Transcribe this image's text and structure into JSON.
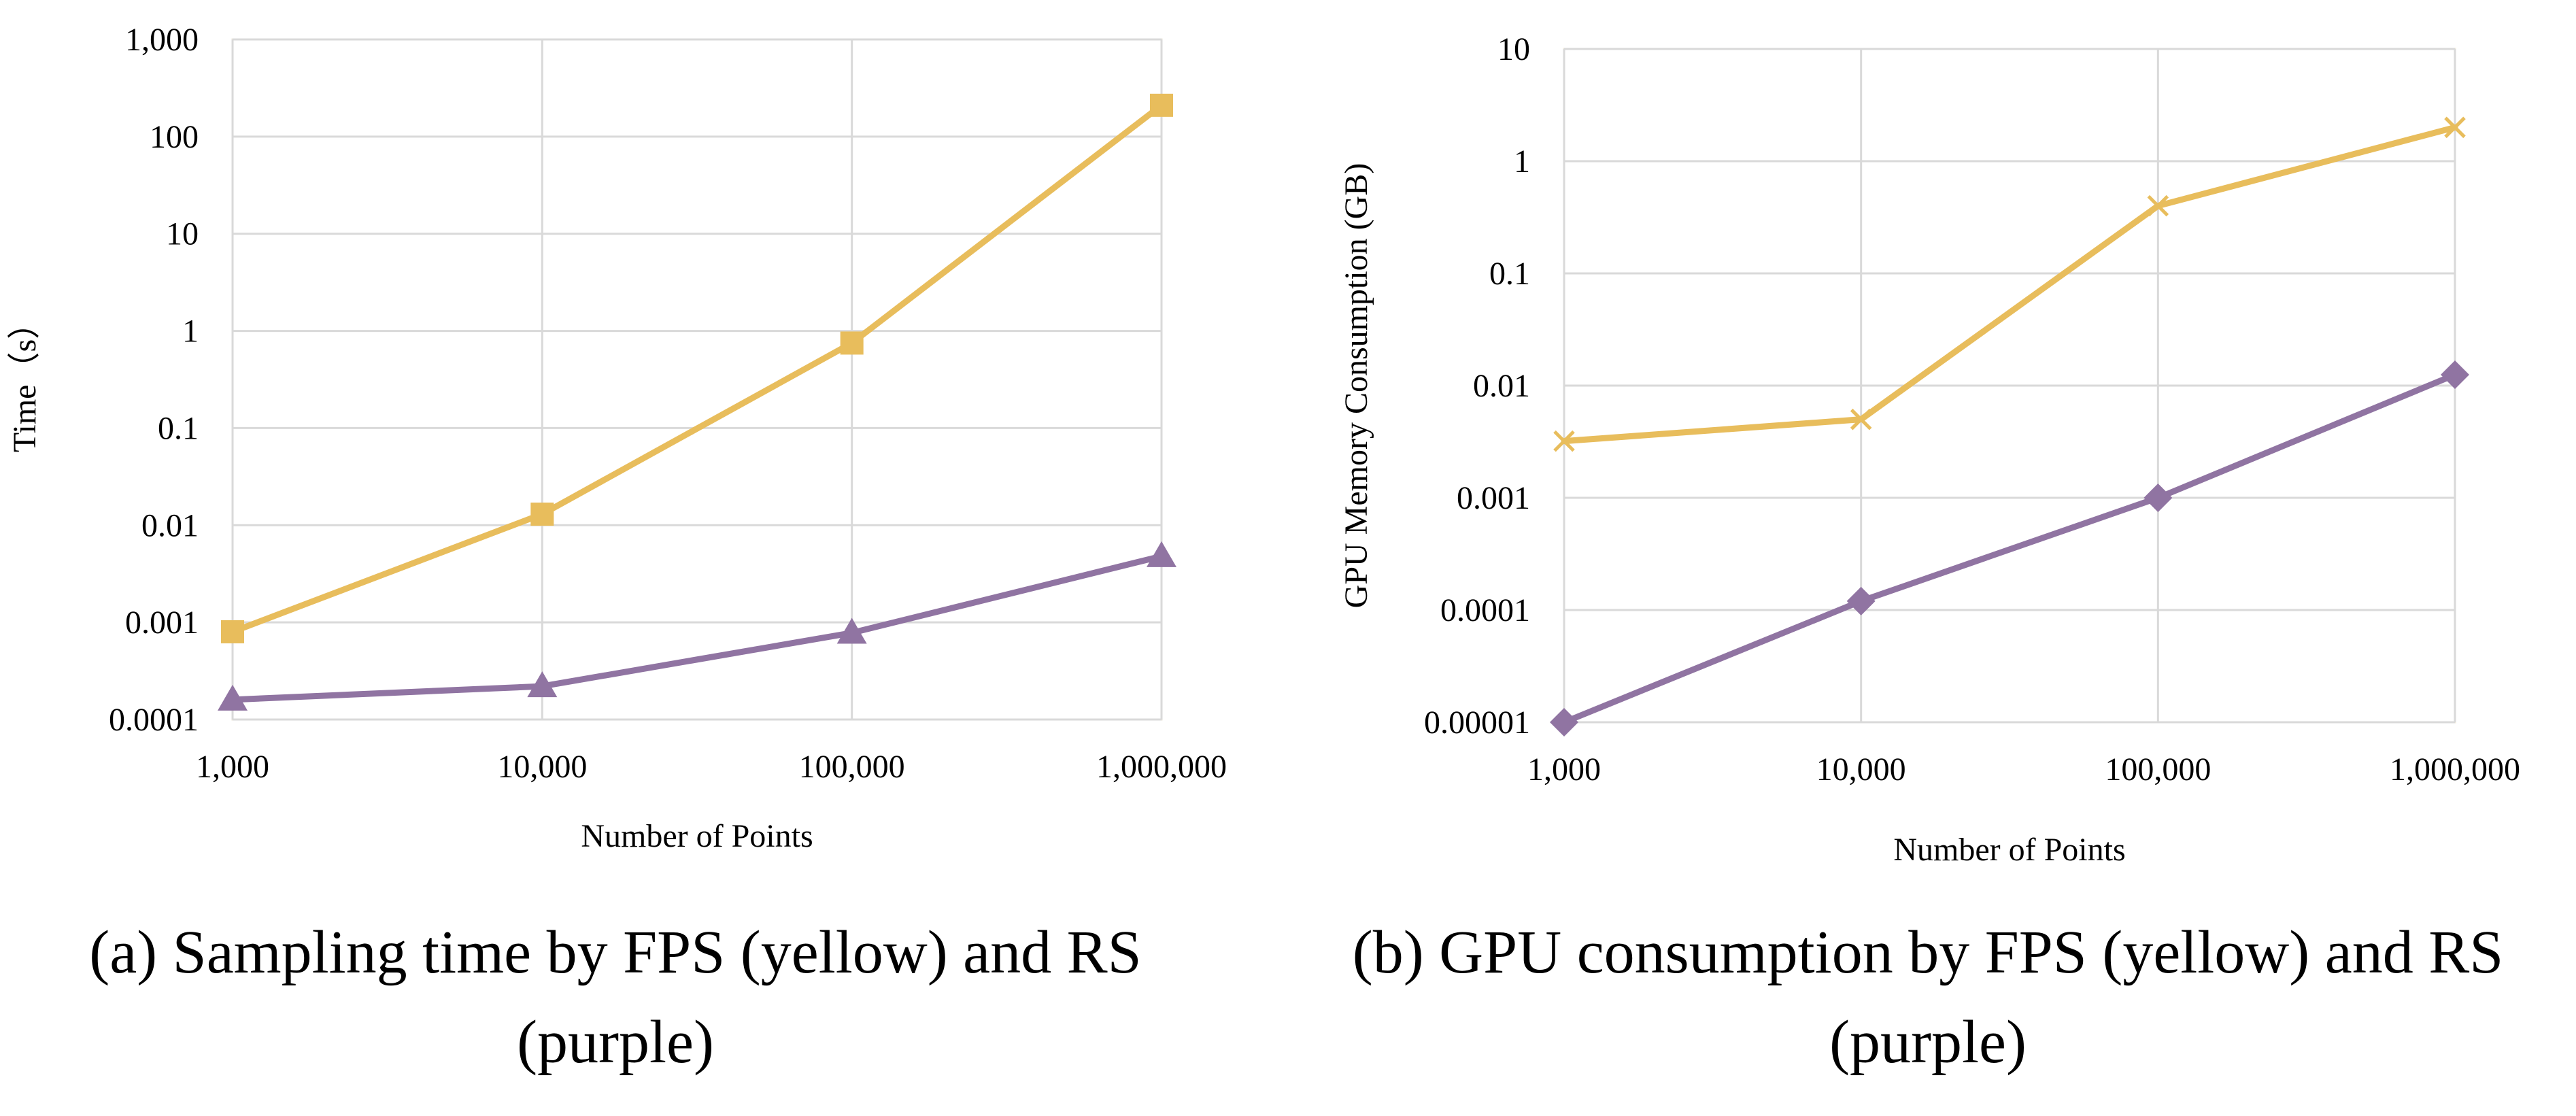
{
  "colors": {
    "fps": "#E8BD5C",
    "rs": "#9074A2",
    "grid": "#D9D9D9",
    "plot_border": "#EDE8D8"
  },
  "chart_data": [
    {
      "id": "a",
      "type": "line",
      "xscale": "log",
      "yscale": "log",
      "x": [
        1000,
        10000,
        100000,
        1000000
      ],
      "xtick_labels": [
        "1,000",
        "10,000",
        "100,000",
        "1,000,000"
      ],
      "yticks": [
        0.0001,
        0.001,
        0.01,
        0.1,
        1,
        10,
        100,
        1000
      ],
      "ytick_labels": [
        "0.0001",
        "0.001",
        "0.01",
        "0.1",
        "1",
        "10",
        "100",
        "1,000"
      ],
      "ylim": [
        0.0001,
        1000
      ],
      "xlabel": "Number of Points",
      "ylabel": "Time（s）",
      "grid": true,
      "series": [
        {
          "name": "FPS",
          "color_key": "fps",
          "marker": "square",
          "values": [
            0.0008,
            0.013,
            0.75,
            210
          ]
        },
        {
          "name": "RS",
          "color_key": "rs",
          "marker": "triangle",
          "values": [
            0.00016,
            0.00022,
            0.00078,
            0.0048
          ]
        }
      ],
      "caption_lines": [
        "(a) Sampling time by FPS (yellow) and RS",
        "(purple)"
      ]
    },
    {
      "id": "b",
      "type": "line",
      "xscale": "log",
      "yscale": "log",
      "x": [
        1000,
        10000,
        100000,
        1000000
      ],
      "xtick_labels": [
        "1,000",
        "10,000",
        "100,000",
        "1,000,000"
      ],
      "yticks": [
        1e-05,
        0.0001,
        0.001,
        0.01,
        0.1,
        1,
        10
      ],
      "ytick_labels": [
        "0.00001",
        "0.0001",
        "0.001",
        "0.01",
        "0.1",
        "1",
        "10"
      ],
      "ylim": [
        1e-05,
        10
      ],
      "xlabel": "Number of Points",
      "ylabel": "GPU Memory Consumption (GB)",
      "grid": true,
      "series": [
        {
          "name": "FPS",
          "color_key": "fps",
          "marker": "x",
          "values": [
            0.0032,
            0.005,
            0.4,
            2
          ]
        },
        {
          "name": "RS",
          "color_key": "rs",
          "marker": "diamond",
          "values": [
            1e-05,
            0.00012,
            0.001,
            0.0125
          ]
        }
      ],
      "caption_lines": [
        "(b) GPU consumption by FPS (yellow) and RS",
        "(purple)"
      ]
    }
  ]
}
